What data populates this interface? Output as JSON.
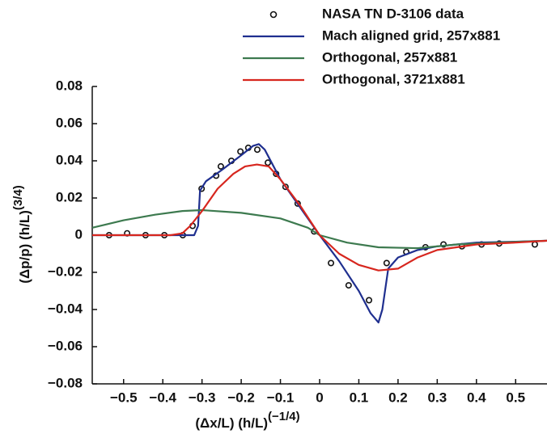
{
  "chart_data": {
    "type": "line",
    "x_label": {
      "text": "(Δx/L) (h/L)",
      "sup": "(−1/4)"
    },
    "y_label": {
      "text": "(Δp/p) (h/L)",
      "sup": "(3/4)"
    },
    "xlim": [
      -0.58,
      0.58
    ],
    "ylim": [
      -0.08,
      0.08
    ],
    "xticks": [
      {
        "value": -0.5,
        "label": "−0.5"
      },
      {
        "value": -0.4,
        "label": "−0.4"
      },
      {
        "value": -0.3,
        "label": "−0.3"
      },
      {
        "value": -0.2,
        "label": "−0.2"
      },
      {
        "value": -0.1,
        "label": "−0.1"
      },
      0,
      0.1,
      0.2,
      0.3,
      0.4,
      0.5
    ],
    "yticks": [
      {
        "value": -0.08,
        "label": "−0.08"
      },
      {
        "value": -0.06,
        "label": "−0.06"
      },
      {
        "value": -0.04,
        "label": "−0.04"
      },
      {
        "value": -0.02,
        "label": "−0.02"
      },
      0,
      0.02,
      0.04,
      0.06,
      0.08
    ],
    "series": [
      {
        "name": "NASA TN D-3106 data",
        "color": "#111111",
        "style": "markers",
        "x": [
          -0.537,
          -0.491,
          -0.444,
          -0.396,
          -0.349,
          -0.324,
          -0.301,
          -0.264,
          -0.252,
          -0.225,
          -0.202,
          -0.182,
          -0.159,
          -0.132,
          -0.111,
          -0.087,
          -0.056,
          -0.014,
          0.029,
          0.074,
          0.126,
          0.171,
          0.221,
          0.27,
          0.316,
          0.363,
          0.413,
          0.458,
          0.549
        ],
        "values": [
          0,
          0.001,
          0,
          0,
          0,
          0.005,
          0.025,
          0.032,
          0.037,
          0.04,
          0.045,
          0.047,
          0.046,
          0.039,
          0.033,
          0.026,
          0.017,
          0.002,
          -0.015,
          -0.027,
          -0.035,
          -0.015,
          -0.009,
          -0.0065,
          -0.005,
          -0.006,
          -0.005,
          -0.0045,
          -0.005
        ]
      },
      {
        "name": "Mach aligned grid, 257x881",
        "color": "#1f2f8f",
        "style": "line",
        "x": [
          -0.58,
          -0.32,
          -0.31,
          -0.305,
          -0.29,
          -0.25,
          -0.2,
          -0.17,
          -0.155,
          -0.14,
          -0.1,
          -0.05,
          0,
          0.05,
          0.1,
          0.13,
          0.15,
          0.16,
          0.175,
          0.2,
          0.25,
          0.3,
          0.35,
          0.4,
          0.5,
          0.58
        ],
        "values": [
          0,
          0,
          0.005,
          0.024,
          0.029,
          0.035,
          0.043,
          0.048,
          0.049,
          0.046,
          0.03,
          0.015,
          0,
          -0.014,
          -0.03,
          -0.042,
          -0.047,
          -0.04,
          -0.018,
          -0.012,
          -0.008,
          -0.006,
          -0.005,
          -0.004,
          -0.0035,
          -0.003
        ]
      },
      {
        "name": "Orthogonal, 257x881",
        "color": "#3d7a4f",
        "style": "line",
        "x": [
          -0.58,
          -0.5,
          -0.42,
          -0.35,
          -0.3,
          -0.2,
          -0.1,
          -0.03,
          0,
          0.07,
          0.15,
          0.25,
          0.35,
          0.45,
          0.58
        ],
        "values": [
          0.004,
          0.008,
          0.011,
          0.013,
          0.0135,
          0.012,
          0.009,
          0.004,
          0,
          -0.004,
          -0.0065,
          -0.007,
          -0.005,
          -0.004,
          -0.003
        ]
      },
      {
        "name": "Orthogonal, 3721x881",
        "color": "#d7261e",
        "style": "line",
        "x": [
          -0.58,
          -0.38,
          -0.35,
          -0.33,
          -0.3,
          -0.26,
          -0.22,
          -0.19,
          -0.16,
          -0.13,
          -0.1,
          -0.05,
          0,
          0.05,
          0.1,
          0.15,
          0.2,
          0.25,
          0.3,
          0.4,
          0.5,
          0.58
        ],
        "values": [
          0,
          0,
          0.001,
          0.005,
          0.013,
          0.025,
          0.033,
          0.037,
          0.038,
          0.037,
          0.03,
          0.016,
          0,
          -0.01,
          -0.016,
          -0.019,
          -0.018,
          -0.012,
          -0.008,
          -0.005,
          -0.004,
          -0.003
        ]
      }
    ]
  }
}
